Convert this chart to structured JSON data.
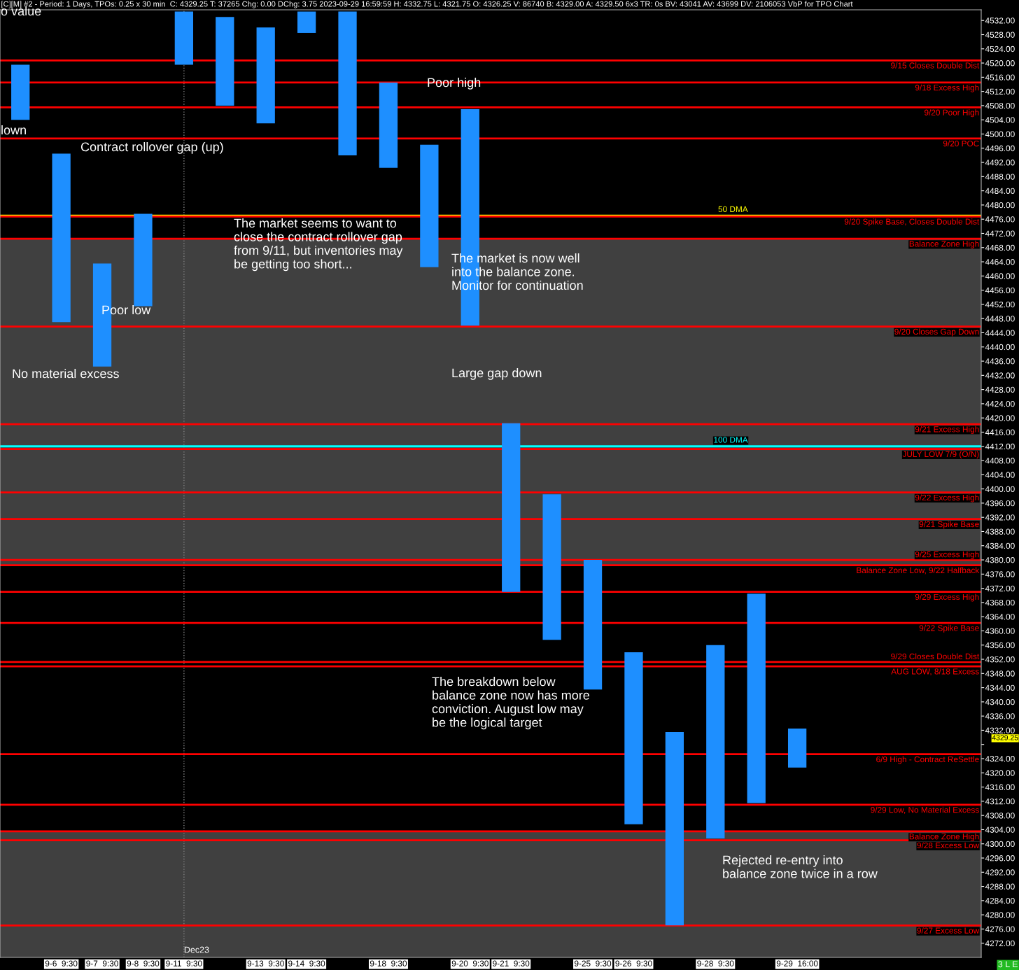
{
  "chart_data": {
    "type": "bar",
    "subtitle": "[C][M] #2 - Period: 1 Days, TPOs: 0.25 x 30 min  C: 4329.25 T: 37265 Chg: 0.00 DChg: 3.75 2023-09-29 16:59:59 H: 4332.75 L: 4321.75 O: 4326.25 V: 86740 B: 4329.00 A: 4329.50 6x3 TR: 0s BV: 43041 AV: 43699 DV: 2106053 VbP for TPO Chart",
    "categories": [
      null,
      "9-6  9:30",
      "9-7  9:30",
      "9-8  9:30",
      "9-11  9:30",
      null,
      "9-13  9:30",
      "9-14  9:30",
      null,
      "9-18  9:30",
      null,
      "9-20  9:30",
      "9-21  9:30",
      null,
      "9-25  9:30",
      "9-26  9:30",
      null,
      "9-28  9:30",
      null,
      "9-29  16:00",
      null,
      null,
      null,
      null
    ],
    "base": [
      4504,
      4447,
      4434.5,
      4451.5,
      4519.5,
      4508,
      4503,
      4528.5,
      4494,
      4490.5,
      4462.5,
      4446,
      4371,
      4357.5,
      4343.5,
      4305.5,
      4277,
      4301.5,
      4311.5,
      4321.5,
      null,
      null,
      null,
      null
    ],
    "values": [
      15.5,
      47.5,
      29,
      26,
      15,
      25,
      27,
      6,
      40.5,
      24,
      34.5,
      61,
      47.5,
      41,
      36.5,
      48.5,
      54.5,
      54.5,
      59,
      11,
      null,
      null,
      null,
      null
    ],
    "color": "#1e8fff",
    "ylim": [
      4268,
      4535
    ],
    "yticks": [
      {
        "value": 4532,
        "label": "4532.00"
      },
      {
        "value": 4528,
        "label": "4528.00"
      },
      {
        "value": 4524,
        "label": "4524.00"
      },
      {
        "value": 4520,
        "label": "4520.00"
      },
      {
        "value": 4516,
        "label": "4516.00"
      },
      {
        "value": 4512,
        "label": "4512.00"
      },
      {
        "value": 4508,
        "label": "4508.00"
      },
      {
        "value": 4504,
        "label": "4504.00"
      },
      {
        "value": 4500,
        "label": "4500.00"
      },
      {
        "value": 4496,
        "label": "4496.00"
      },
      {
        "value": 4492,
        "label": "4492.00"
      },
      {
        "value": 4488,
        "label": "4488.00"
      },
      {
        "value": 4484,
        "label": "4484.00"
      },
      {
        "value": 4480,
        "label": "4480.00"
      },
      {
        "value": 4476,
        "label": "4476.00"
      },
      {
        "value": 4472,
        "label": "4472.00"
      },
      {
        "value": 4468,
        "label": "4468.00"
      },
      {
        "value": 4464,
        "label": "4464.00"
      },
      {
        "value": 4460,
        "label": "4460.00"
      },
      {
        "value": 4456,
        "label": "4456.00"
      },
      {
        "value": 4452,
        "label": "4452.00"
      },
      {
        "value": 4448,
        "label": "4448.00"
      },
      {
        "value": 4444,
        "label": "4444.00"
      },
      {
        "value": 4440,
        "label": "4440.00"
      },
      {
        "value": 4436,
        "label": "4436.00"
      },
      {
        "value": 4432,
        "label": "4432.00"
      },
      {
        "value": 4428,
        "label": "4428.00"
      },
      {
        "value": 4424,
        "label": "4424.00"
      },
      {
        "value": 4420,
        "label": "4420.00"
      },
      {
        "value": 4416,
        "label": "4416.00"
      },
      {
        "value": 4412,
        "label": "4412.00"
      },
      {
        "value": 4408,
        "label": "4408.00"
      },
      {
        "value": 4404,
        "label": "4404.00"
      },
      {
        "value": 4400,
        "label": "4400.00"
      },
      {
        "value": 4396,
        "label": "4396.00"
      },
      {
        "value": 4392,
        "label": "4392.00"
      },
      {
        "value": 4388,
        "label": "4388.00"
      },
      {
        "value": 4384,
        "label": "4384.00"
      },
      {
        "value": 4380,
        "label": "4380.00"
      },
      {
        "value": 4376,
        "label": "4376.00"
      },
      {
        "value": 4372,
        "label": "4372.00"
      },
      {
        "value": 4368,
        "label": "4368.00"
      },
      {
        "value": 4364,
        "label": "4364.00"
      },
      {
        "value": 4360,
        "label": "4360.00"
      },
      {
        "value": 4356,
        "label": "4356.00"
      },
      {
        "value": 4352,
        "label": "4352.00"
      },
      {
        "value": 4348,
        "label": "4348.00"
      },
      {
        "value": 4344,
        "label": "4344.00"
      },
      {
        "value": 4340,
        "label": "4340.00"
      },
      {
        "value": 4336,
        "label": "4336.00"
      },
      {
        "value": 4332,
        "label": "4332.00"
      },
      {
        "value": 4328,
        "label": null
      },
      {
        "value": 4324,
        "label": "4324.00"
      },
      {
        "value": 4320,
        "label": "4320.00"
      },
      {
        "value": 4316,
        "label": "4316.00"
      },
      {
        "value": 4312,
        "label": "4312.00"
      },
      {
        "value": 4308,
        "label": "4308.00"
      },
      {
        "value": 4304,
        "label": "4304.00"
      },
      {
        "value": 4300,
        "label": "4300.00"
      },
      {
        "value": 4296,
        "label": "4296.00"
      },
      {
        "value": 4292,
        "label": "4292.00"
      },
      {
        "value": 4288,
        "label": "4288.00"
      },
      {
        "value": 4284,
        "label": "4284.00"
      },
      {
        "value": 4280,
        "label": "4280.00"
      },
      {
        "value": 4276,
        "label": "4276.00"
      },
      {
        "value": 4272,
        "label": "4272.00"
      }
    ],
    "bands": [
      {
        "axis": "y",
        "from": 4378.5,
        "to": 4470.5,
        "label": null,
        "color": "#404040"
      },
      {
        "axis": "y",
        "from": 4268,
        "to": 4303.5,
        "label": null,
        "color": "#404040"
      }
    ],
    "ref_lines": [
      {
        "axis": "x",
        "value": "9-11  9:30",
        "label": "Dec23",
        "color": "#808080",
        "line_style": "dotted"
      },
      {
        "axis": "y",
        "value": 4477,
        "label": "50 DMA",
        "color": "#ffff00"
      },
      {
        "axis": "y",
        "value": 4412,
        "label": "100 DMA",
        "color": "#00ffff"
      },
      {
        "axis": "y",
        "value": 4520.75,
        "label": "9/15 Closes Double Dist",
        "color": "#ff0000"
      },
      {
        "axis": "y",
        "value": 4514.5,
        "label": "9/18 Excess High",
        "color": "#ff0000"
      },
      {
        "axis": "y",
        "value": 4507.5,
        "label": "9/20 Poor High",
        "color": "#ff0000"
      },
      {
        "axis": "y",
        "value": 4498.75,
        "label": "9/20 POC",
        "color": "#ff0000"
      },
      {
        "axis": "y",
        "value": 4476.75,
        "label": "9/20 Spike Base, Closes Double Dist",
        "color": "#ff0000"
      },
      {
        "axis": "y",
        "value": 4470.5,
        "label": "Balance Zone High",
        "color": "#ff0000"
      },
      {
        "axis": "y",
        "value": 4445.75,
        "label": "9/20 Closes Gap Down",
        "color": "#ff0000"
      },
      {
        "axis": "y",
        "value": 4418.25,
        "label": "9/21 Excess High",
        "color": "#ff0000"
      },
      {
        "axis": "y",
        "value": 4411.25,
        "label": "JULY LOW 7/9 (O/N)",
        "color": "#ff0000"
      },
      {
        "axis": "y",
        "value": 4399,
        "label": "9/22 Excess High",
        "color": "#ff0000"
      },
      {
        "axis": "y",
        "value": 4391.5,
        "label": "9/21 Spike Base",
        "color": "#ff0000"
      },
      {
        "axis": "y",
        "value": 4380,
        "label": "9/25 Excess High",
        "color": "#ff0000"
      },
      {
        "axis": "y",
        "value": 4378.5,
        "label": "Balance Zone Low, 9/22 Halfback",
        "color": "#ff0000"
      },
      {
        "axis": "y",
        "value": 4371,
        "label": "9/29 Excess High",
        "color": "#ff0000"
      },
      {
        "axis": "y",
        "value": 4362.25,
        "label": "9/22 Spike Base",
        "color": "#ff0000"
      },
      {
        "axis": "y",
        "value": 4351.25,
        "label": "9/29 Closes Double Dist",
        "color": "#ff0000"
      },
      {
        "axis": "y",
        "value": 4350,
        "label": "AUG LOW, 8/18 Excess",
        "color": "#ff0000"
      },
      {
        "axis": "y",
        "value": 4325.25,
        "label": "6/9 High - Contract ReSettle",
        "color": "#ff0000"
      },
      {
        "axis": "y",
        "value": 4311,
        "label": "9/29 Low, No Material Excess",
        "color": "#ff0000"
      },
      {
        "axis": "y",
        "value": 4303.5,
        "label": "Balance Zone High",
        "color": "#ff0000"
      },
      {
        "axis": "y",
        "value": 4301,
        "label": "9/28 Excess Low",
        "color": "#ff0000"
      },
      {
        "axis": "y",
        "value": 4277,
        "label": "9/27 Excess Low",
        "color": "#ff0000"
      }
    ],
    "annotations": [
      "o value",
      "lown",
      "Contract rollover gap (up)",
      "Poor low",
      "No material excess",
      "The market seems to want to\nclose the contract rollover gap\nfrom 9/11, but inventories may\nbe getting too short...",
      "Poor high",
      "The market is now well\ninto the balance zone.\nMonitor for continuation",
      "Large gap down",
      "The breakdown below\nbalance zone now has more\nconviction. August low may\nbe the logical target",
      "Rejected re-entry into\nbalance zone twice in a row",
      "4329.25",
      "3 L E"
    ]
  }
}
